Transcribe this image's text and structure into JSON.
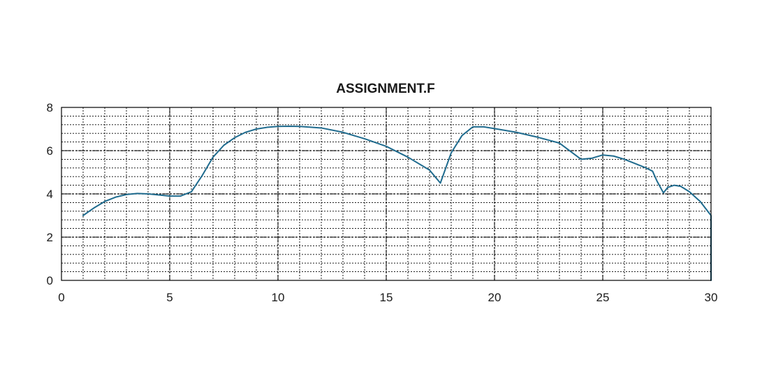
{
  "chart_data": {
    "type": "line",
    "title": "ASSIGNMENT.F",
    "xlabel": "",
    "ylabel": "",
    "xlim": [
      0,
      30
    ],
    "ylim": [
      0,
      8
    ],
    "x_ticks": [
      0,
      5,
      10,
      15,
      20,
      25,
      30
    ],
    "y_ticks": [
      0,
      2,
      4,
      6,
      8
    ],
    "grid": true,
    "minor_grid": true,
    "legend": "none",
    "line_color": "#1f6b8e",
    "series": [
      {
        "x": [
          1,
          1.5,
          2,
          2.5,
          3,
          3.5,
          4,
          4.5,
          5,
          5.5,
          6,
          6.5,
          7,
          7.5,
          8,
          8.5,
          9,
          9.5,
          10,
          10.5,
          11,
          12,
          13,
          14,
          15,
          16,
          17,
          17.5,
          18,
          18.5,
          19,
          19.5,
          20,
          21,
          22,
          23,
          24,
          24.5,
          25,
          25.5,
          26,
          26.5,
          27,
          27.3,
          27.5,
          27.8,
          28,
          28.3,
          28.6,
          29,
          29.5,
          30,
          30
        ],
        "y": [
          3.0,
          3.35,
          3.65,
          3.85,
          3.97,
          4.02,
          4.0,
          3.95,
          3.9,
          3.9,
          4.1,
          4.85,
          5.7,
          6.25,
          6.6,
          6.85,
          7.0,
          7.08,
          7.12,
          7.13,
          7.12,
          7.05,
          6.85,
          6.55,
          6.2,
          5.7,
          5.1,
          4.5,
          5.9,
          6.7,
          7.1,
          7.1,
          7.02,
          6.85,
          6.62,
          6.35,
          5.6,
          5.65,
          5.8,
          5.75,
          5.6,
          5.4,
          5.2,
          5.05,
          4.6,
          4.05,
          4.3,
          4.4,
          4.35,
          4.1,
          3.65,
          3.0,
          0.0
        ]
      }
    ]
  }
}
